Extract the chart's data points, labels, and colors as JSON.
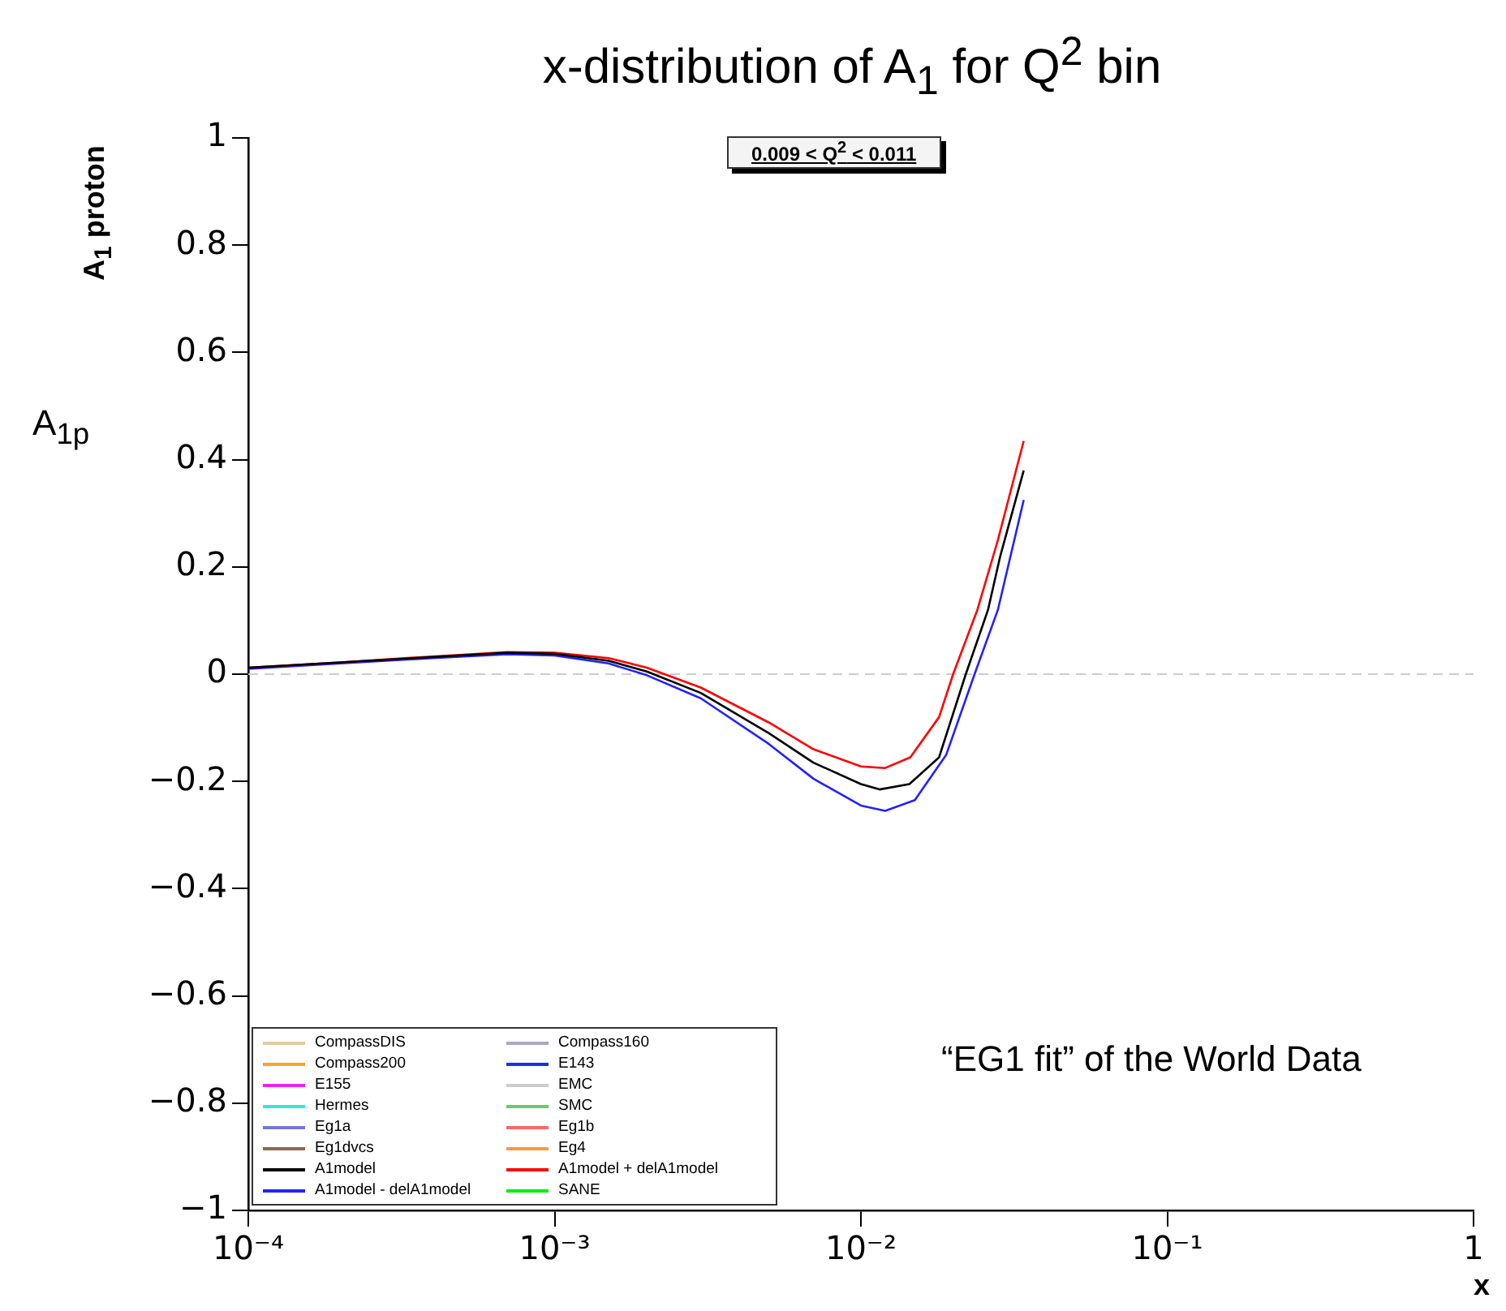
{
  "chart_data": {
    "type": "line",
    "title": "x-distribution of A$_{1}$ for Q$^{2}$ bin",
    "xlabel": "x",
    "ylabel": "A$_{1}$ proton",
    "log": "x",
    "xlim": [
      0.0001,
      1
    ],
    "xticks": [
      {
        "value": 0.0001,
        "label": "10⁻⁴"
      },
      {
        "value": 0.001,
        "label": "10⁻³"
      },
      {
        "value": 0.01,
        "label": "10⁻²"
      },
      {
        "value": 0.1,
        "label": "10⁻¹"
      },
      1
    ],
    "ylim": [
      -1,
      1
    ],
    "yticks": [
      {
        "value": -1,
        "label": "−1"
      },
      {
        "value": -0.8,
        "label": "−0.8"
      },
      {
        "value": -0.6,
        "label": "−0.6"
      },
      {
        "value": -0.4,
        "label": "−0.4"
      },
      {
        "value": -0.2,
        "label": "−0.2"
      },
      0,
      0.2,
      0.4,
      0.6,
      0.8,
      1
    ],
    "grid": false,
    "legend": "bottom left",
    "ref_lines": [
      {
        "axis": "y",
        "value": 0,
        "color": "#cccccc",
        "line_style": "dashed"
      }
    ],
    "annotations": [
      "0.009 < Q$^{2}$ < 0.011",
      "“EG1 fit” of the World Data",
      "A$_{1p}$"
    ],
    "series": [
      {
        "name": "CompassDIS",
        "color": "#e8c9a0"
      },
      {
        "name": "Compass160",
        "color": "#a8a8c8"
      },
      {
        "name": "Compass200",
        "color": "#f5a623"
      },
      {
        "name": "E143",
        "color": "#1a33e0"
      },
      {
        "name": "E155",
        "color": "#ee22ee"
      },
      {
        "name": "EMC",
        "color": "#cccccc"
      },
      {
        "name": "Hermes",
        "color": "#33e6e6"
      },
      {
        "name": "SMC",
        "color": "#66cc66"
      },
      {
        "name": "Eg1a",
        "color": "#7777dd"
      },
      {
        "name": "Eg1b",
        "color": "#ff6666"
      },
      {
        "name": "Eg1dvcs",
        "color": "#8b6a50"
      },
      {
        "name": "Eg4",
        "color": "#ff9944"
      },
      {
        "name": "A1model",
        "color": "#000000",
        "x": [
          0.0001,
          0.0002,
          0.0004,
          0.0007,
          0.001,
          0.0015,
          0.002,
          0.003,
          0.005,
          0.007,
          0.01,
          0.0115,
          0.0144,
          0.018,
          0.022,
          0.026,
          0.0285,
          0.034
        ],
        "values": [
          0.012,
          0.022,
          0.032,
          0.04,
          0.038,
          0.025,
          0.005,
          -0.035,
          -0.11,
          -0.165,
          -0.205,
          -0.215,
          -0.205,
          -0.155,
          0.0,
          0.12,
          0.22,
          0.38
        ]
      },
      {
        "name": "A1model + delA1model",
        "color": "#ff0000",
        "x": [
          0.0001,
          0.0002,
          0.0004,
          0.0007,
          0.001,
          0.0015,
          0.002,
          0.003,
          0.005,
          0.007,
          0.01,
          0.012,
          0.0145,
          0.018,
          0.02,
          0.024,
          0.028,
          0.034
        ],
        "values": [
          0.012,
          0.022,
          0.033,
          0.041,
          0.04,
          0.03,
          0.012,
          -0.025,
          -0.09,
          -0.14,
          -0.172,
          -0.175,
          -0.155,
          -0.08,
          0.0,
          0.12,
          0.25,
          0.435
        ]
      },
      {
        "name": "A1model - delA1model",
        "color": "#2222ff",
        "x": [
          0.0001,
          0.0002,
          0.0004,
          0.0007,
          0.001,
          0.0015,
          0.002,
          0.003,
          0.005,
          0.007,
          0.01,
          0.012,
          0.015,
          0.019,
          0.0235,
          0.028,
          0.034
        ],
        "values": [
          0.01,
          0.02,
          0.03,
          0.037,
          0.035,
          0.02,
          -0.002,
          -0.045,
          -0.13,
          -0.195,
          -0.245,
          -0.255,
          -0.235,
          -0.15,
          0.0,
          0.12,
          0.325
        ]
      },
      {
        "name": "SANE",
        "color": "#00ee00"
      }
    ]
  }
}
